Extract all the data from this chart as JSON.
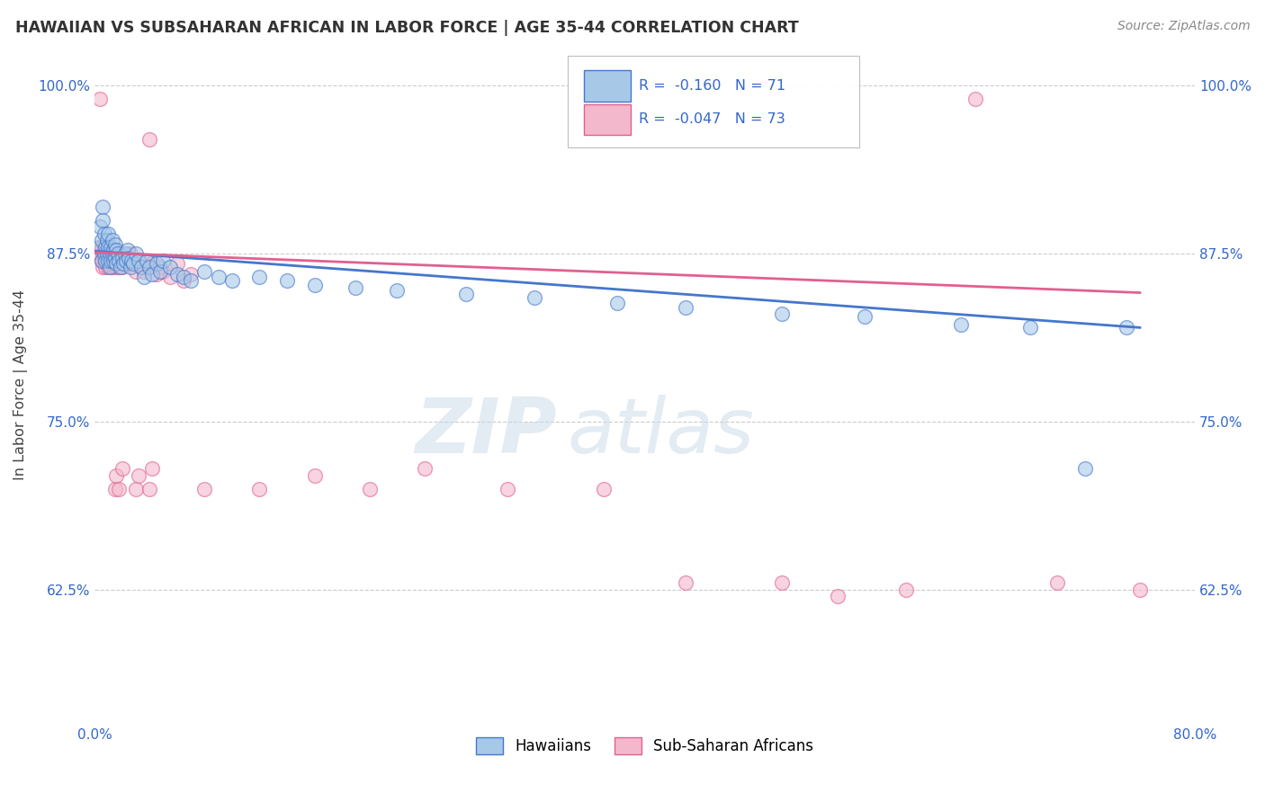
{
  "title": "HAWAIIAN VS SUBSAHARAN AFRICAN IN LABOR FORCE | AGE 35-44 CORRELATION CHART",
  "source": "Source: ZipAtlas.com",
  "ylabel": "In Labor Force | Age 35-44",
  "x_min": 0.0,
  "x_max": 0.8,
  "y_min": 0.525,
  "y_max": 1.03,
  "x_ticks": [
    0.0,
    0.1,
    0.2,
    0.3,
    0.4,
    0.5,
    0.6,
    0.7,
    0.8
  ],
  "x_tick_labels": [
    "0.0%",
    "",
    "",
    "",
    "",
    "",
    "",
    "",
    "80.0%"
  ],
  "y_ticks": [
    0.625,
    0.75,
    0.875,
    1.0
  ],
  "y_tick_labels": [
    "62.5%",
    "75.0%",
    "87.5%",
    "100.0%"
  ],
  "legend_r_blue": "-0.160",
  "legend_n_blue": "71",
  "legend_r_pink": "-0.047",
  "legend_n_pink": "73",
  "blue_color": "#a8c8e8",
  "pink_color": "#f4b8cc",
  "trend_blue": "#4477cc",
  "trend_pink": "#e06090",
  "watermark_text": "ZIP",
  "watermark_text2": "atlas",
  "blue_points": [
    [
      0.003,
      0.88
    ],
    [
      0.004,
      0.895
    ],
    [
      0.005,
      0.87
    ],
    [
      0.005,
      0.885
    ],
    [
      0.006,
      0.91
    ],
    [
      0.006,
      0.9
    ],
    [
      0.007,
      0.875
    ],
    [
      0.007,
      0.89
    ],
    [
      0.008,
      0.87
    ],
    [
      0.008,
      0.88
    ],
    [
      0.009,
      0.875
    ],
    [
      0.009,
      0.885
    ],
    [
      0.01,
      0.87
    ],
    [
      0.01,
      0.88
    ],
    [
      0.01,
      0.89
    ],
    [
      0.011,
      0.865
    ],
    [
      0.011,
      0.875
    ],
    [
      0.012,
      0.87
    ],
    [
      0.012,
      0.88
    ],
    [
      0.013,
      0.875
    ],
    [
      0.013,
      0.885
    ],
    [
      0.014,
      0.87
    ],
    [
      0.014,
      0.878
    ],
    [
      0.015,
      0.872
    ],
    [
      0.015,
      0.882
    ],
    [
      0.016,
      0.868
    ],
    [
      0.016,
      0.878
    ],
    [
      0.017,
      0.875
    ],
    [
      0.018,
      0.87
    ],
    [
      0.019,
      0.865
    ],
    [
      0.02,
      0.872
    ],
    [
      0.021,
      0.868
    ],
    [
      0.022,
      0.875
    ],
    [
      0.023,
      0.87
    ],
    [
      0.024,
      0.878
    ],
    [
      0.025,
      0.872
    ],
    [
      0.026,
      0.865
    ],
    [
      0.027,
      0.87
    ],
    [
      0.028,
      0.868
    ],
    [
      0.03,
      0.875
    ],
    [
      0.032,
      0.87
    ],
    [
      0.034,
      0.865
    ],
    [
      0.036,
      0.858
    ],
    [
      0.038,
      0.87
    ],
    [
      0.04,
      0.865
    ],
    [
      0.042,
      0.86
    ],
    [
      0.045,
      0.868
    ],
    [
      0.048,
      0.862
    ],
    [
      0.05,
      0.87
    ],
    [
      0.055,
      0.865
    ],
    [
      0.06,
      0.86
    ],
    [
      0.065,
      0.858
    ],
    [
      0.07,
      0.855
    ],
    [
      0.08,
      0.862
    ],
    [
      0.09,
      0.858
    ],
    [
      0.1,
      0.855
    ],
    [
      0.12,
      0.858
    ],
    [
      0.14,
      0.855
    ],
    [
      0.16,
      0.852
    ],
    [
      0.19,
      0.85
    ],
    [
      0.22,
      0.848
    ],
    [
      0.27,
      0.845
    ],
    [
      0.32,
      0.842
    ],
    [
      0.38,
      0.838
    ],
    [
      0.43,
      0.835
    ],
    [
      0.5,
      0.83
    ],
    [
      0.56,
      0.828
    ],
    [
      0.63,
      0.822
    ],
    [
      0.68,
      0.82
    ],
    [
      0.72,
      0.715
    ],
    [
      0.75,
      0.82
    ]
  ],
  "pink_points": [
    [
      0.003,
      0.875
    ],
    [
      0.004,
      0.99
    ],
    [
      0.005,
      0.87
    ],
    [
      0.005,
      0.88
    ],
    [
      0.006,
      0.865
    ],
    [
      0.006,
      0.875
    ],
    [
      0.007,
      0.87
    ],
    [
      0.007,
      0.88
    ],
    [
      0.008,
      0.865
    ],
    [
      0.008,
      0.875
    ],
    [
      0.009,
      0.87
    ],
    [
      0.009,
      0.878
    ],
    [
      0.01,
      0.865
    ],
    [
      0.01,
      0.875
    ],
    [
      0.011,
      0.87
    ],
    [
      0.011,
      0.88
    ],
    [
      0.012,
      0.865
    ],
    [
      0.012,
      0.875
    ],
    [
      0.013,
      0.87
    ],
    [
      0.013,
      0.878
    ],
    [
      0.014,
      0.865
    ],
    [
      0.014,
      0.872
    ],
    [
      0.015,
      0.868
    ],
    [
      0.015,
      0.878
    ],
    [
      0.016,
      0.865
    ],
    [
      0.016,
      0.875
    ],
    [
      0.017,
      0.87
    ],
    [
      0.018,
      0.865
    ],
    [
      0.018,
      0.875
    ],
    [
      0.019,
      0.87
    ],
    [
      0.02,
      0.865
    ],
    [
      0.02,
      0.872
    ],
    [
      0.022,
      0.87
    ],
    [
      0.024,
      0.868
    ],
    [
      0.026,
      0.875
    ],
    [
      0.028,
      0.87
    ],
    [
      0.03,
      0.862
    ],
    [
      0.032,
      0.87
    ],
    [
      0.034,
      0.865
    ],
    [
      0.036,
      0.862
    ],
    [
      0.038,
      0.87
    ],
    [
      0.04,
      0.865
    ],
    [
      0.042,
      0.868
    ],
    [
      0.045,
      0.86
    ],
    [
      0.048,
      0.865
    ],
    [
      0.05,
      0.862
    ],
    [
      0.055,
      0.858
    ],
    [
      0.06,
      0.868
    ],
    [
      0.065,
      0.855
    ],
    [
      0.07,
      0.86
    ],
    [
      0.015,
      0.7
    ],
    [
      0.016,
      0.71
    ],
    [
      0.018,
      0.7
    ],
    [
      0.02,
      0.715
    ],
    [
      0.03,
      0.7
    ],
    [
      0.032,
      0.71
    ],
    [
      0.04,
      0.7
    ],
    [
      0.042,
      0.715
    ],
    [
      0.08,
      0.7
    ],
    [
      0.12,
      0.7
    ],
    [
      0.16,
      0.71
    ],
    [
      0.2,
      0.7
    ],
    [
      0.24,
      0.715
    ],
    [
      0.3,
      0.7
    ],
    [
      0.37,
      0.7
    ],
    [
      0.43,
      0.63
    ],
    [
      0.5,
      0.63
    ],
    [
      0.54,
      0.62
    ],
    [
      0.59,
      0.625
    ],
    [
      0.64,
      0.99
    ],
    [
      0.7,
      0.63
    ],
    [
      0.76,
      0.625
    ],
    [
      0.04,
      0.96
    ]
  ]
}
